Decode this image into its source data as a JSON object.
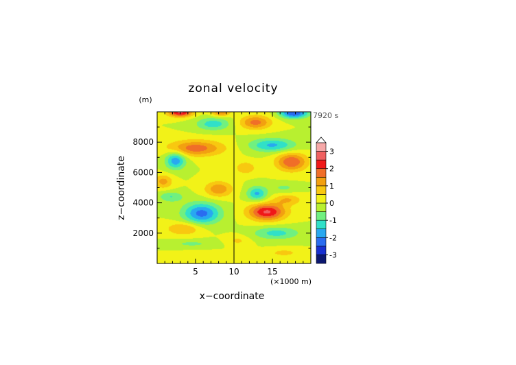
{
  "chart_data": {
    "type": "heatmap",
    "title": "zonal velocity",
    "xlabel": "x−coordinate",
    "ylabel": "z−coordinate",
    "x_unit": "(×1000 m)",
    "y_unit": "(m)",
    "time_label": "7920 s",
    "xlim": [
      0,
      20
    ],
    "ylim": [
      0,
      10000
    ],
    "x_ticks": [
      "5",
      "10",
      "15"
    ],
    "x_tick_values": [
      5,
      10,
      15
    ],
    "y_ticks": [
      "2000",
      "4000",
      "6000",
      "8000"
    ],
    "y_tick_values": [
      2000,
      4000,
      6000,
      8000
    ],
    "colorbar": {
      "min": -3.5,
      "max": 3.5,
      "step": 0.5,
      "extend_max": true,
      "tick_labels": [
        "-3",
        "-2",
        "-1",
        "0",
        "1",
        "2",
        "3"
      ],
      "tick_values": [
        -3,
        -2,
        -1,
        0,
        1,
        2,
        3
      ],
      "colors": [
        "#0c1870",
        "#1830d0",
        "#2a6cf0",
        "#28a8f0",
        "#30e0c8",
        "#70f080",
        "#b8f030",
        "#f2f218",
        "#f8c810",
        "#f2a010",
        "#f06e28",
        "#f01818",
        "#f06060",
        "#f6a8a8"
      ]
    },
    "features": [
      {
        "x": 5.8,
        "z": 3300,
        "value": -2.2,
        "sx": 2.4,
        "sz": 700
      },
      {
        "x": 2.4,
        "z": 6800,
        "value": -1.9,
        "sx": 1.3,
        "sz": 580
      },
      {
        "x": 7.3,
        "z": 9200,
        "value": -1.3,
        "sx": 2.2,
        "sz": 420
      },
      {
        "x": 1.8,
        "z": 4400,
        "value": -1.0,
        "sx": 1.6,
        "sz": 350
      },
      {
        "x": 4.5,
        "z": 1300,
        "value": -0.6,
        "sx": 3.0,
        "sz": 250
      },
      {
        "x": 13.0,
        "z": 4600,
        "value": -1.6,
        "sx": 1.3,
        "sz": 480
      },
      {
        "x": 15.0,
        "z": 7800,
        "value": -1.6,
        "sx": 3.0,
        "sz": 450
      },
      {
        "x": 15.5,
        "z": 2000,
        "value": -1.2,
        "sx": 3.0,
        "sz": 420
      },
      {
        "x": 17.8,
        "z": 9900,
        "value": -2.5,
        "sx": 1.8,
        "sz": 320
      },
      {
        "x": 16.5,
        "z": 5000,
        "value": -0.6,
        "sx": 1.8,
        "sz": 300
      },
      {
        "x": 5.0,
        "z": 7600,
        "value": 1.8,
        "sx": 3.6,
        "sz": 520
      },
      {
        "x": 8.0,
        "z": 4900,
        "value": 1.4,
        "sx": 1.8,
        "sz": 520
      },
      {
        "x": 3.5,
        "z": 2300,
        "value": 1.1,
        "sx": 2.3,
        "sz": 430
      },
      {
        "x": 0.8,
        "z": 5400,
        "value": 1.2,
        "sx": 1.2,
        "sz": 450
      },
      {
        "x": 3.0,
        "z": 9950,
        "value": 2.6,
        "sx": 1.6,
        "sz": 280
      },
      {
        "x": 8.3,
        "z": 9950,
        "value": 1.5,
        "sx": 1.2,
        "sz": 250
      },
      {
        "x": 14.3,
        "z": 3400,
        "value": 2.6,
        "sx": 2.4,
        "sz": 560
      },
      {
        "x": 17.5,
        "z": 6700,
        "value": 2.0,
        "sx": 2.0,
        "sz": 600
      },
      {
        "x": 12.8,
        "z": 9300,
        "value": 1.7,
        "sx": 2.0,
        "sz": 450
      },
      {
        "x": 11.5,
        "z": 6300,
        "value": 1.0,
        "sx": 1.3,
        "sz": 400
      },
      {
        "x": 17.0,
        "z": 4200,
        "value": 1.0,
        "sx": 1.8,
        "sz": 350
      },
      {
        "x": 10.5,
        "z": 1500,
        "value": 0.6,
        "sx": 1.5,
        "sz": 350
      },
      {
        "x": 16.5,
        "z": 700,
        "value": 0.7,
        "sx": 2.0,
        "sz": 250
      },
      {
        "x": 6.0,
        "z": 600,
        "value": 0.5,
        "sx": 3.0,
        "sz": 200
      }
    ]
  }
}
